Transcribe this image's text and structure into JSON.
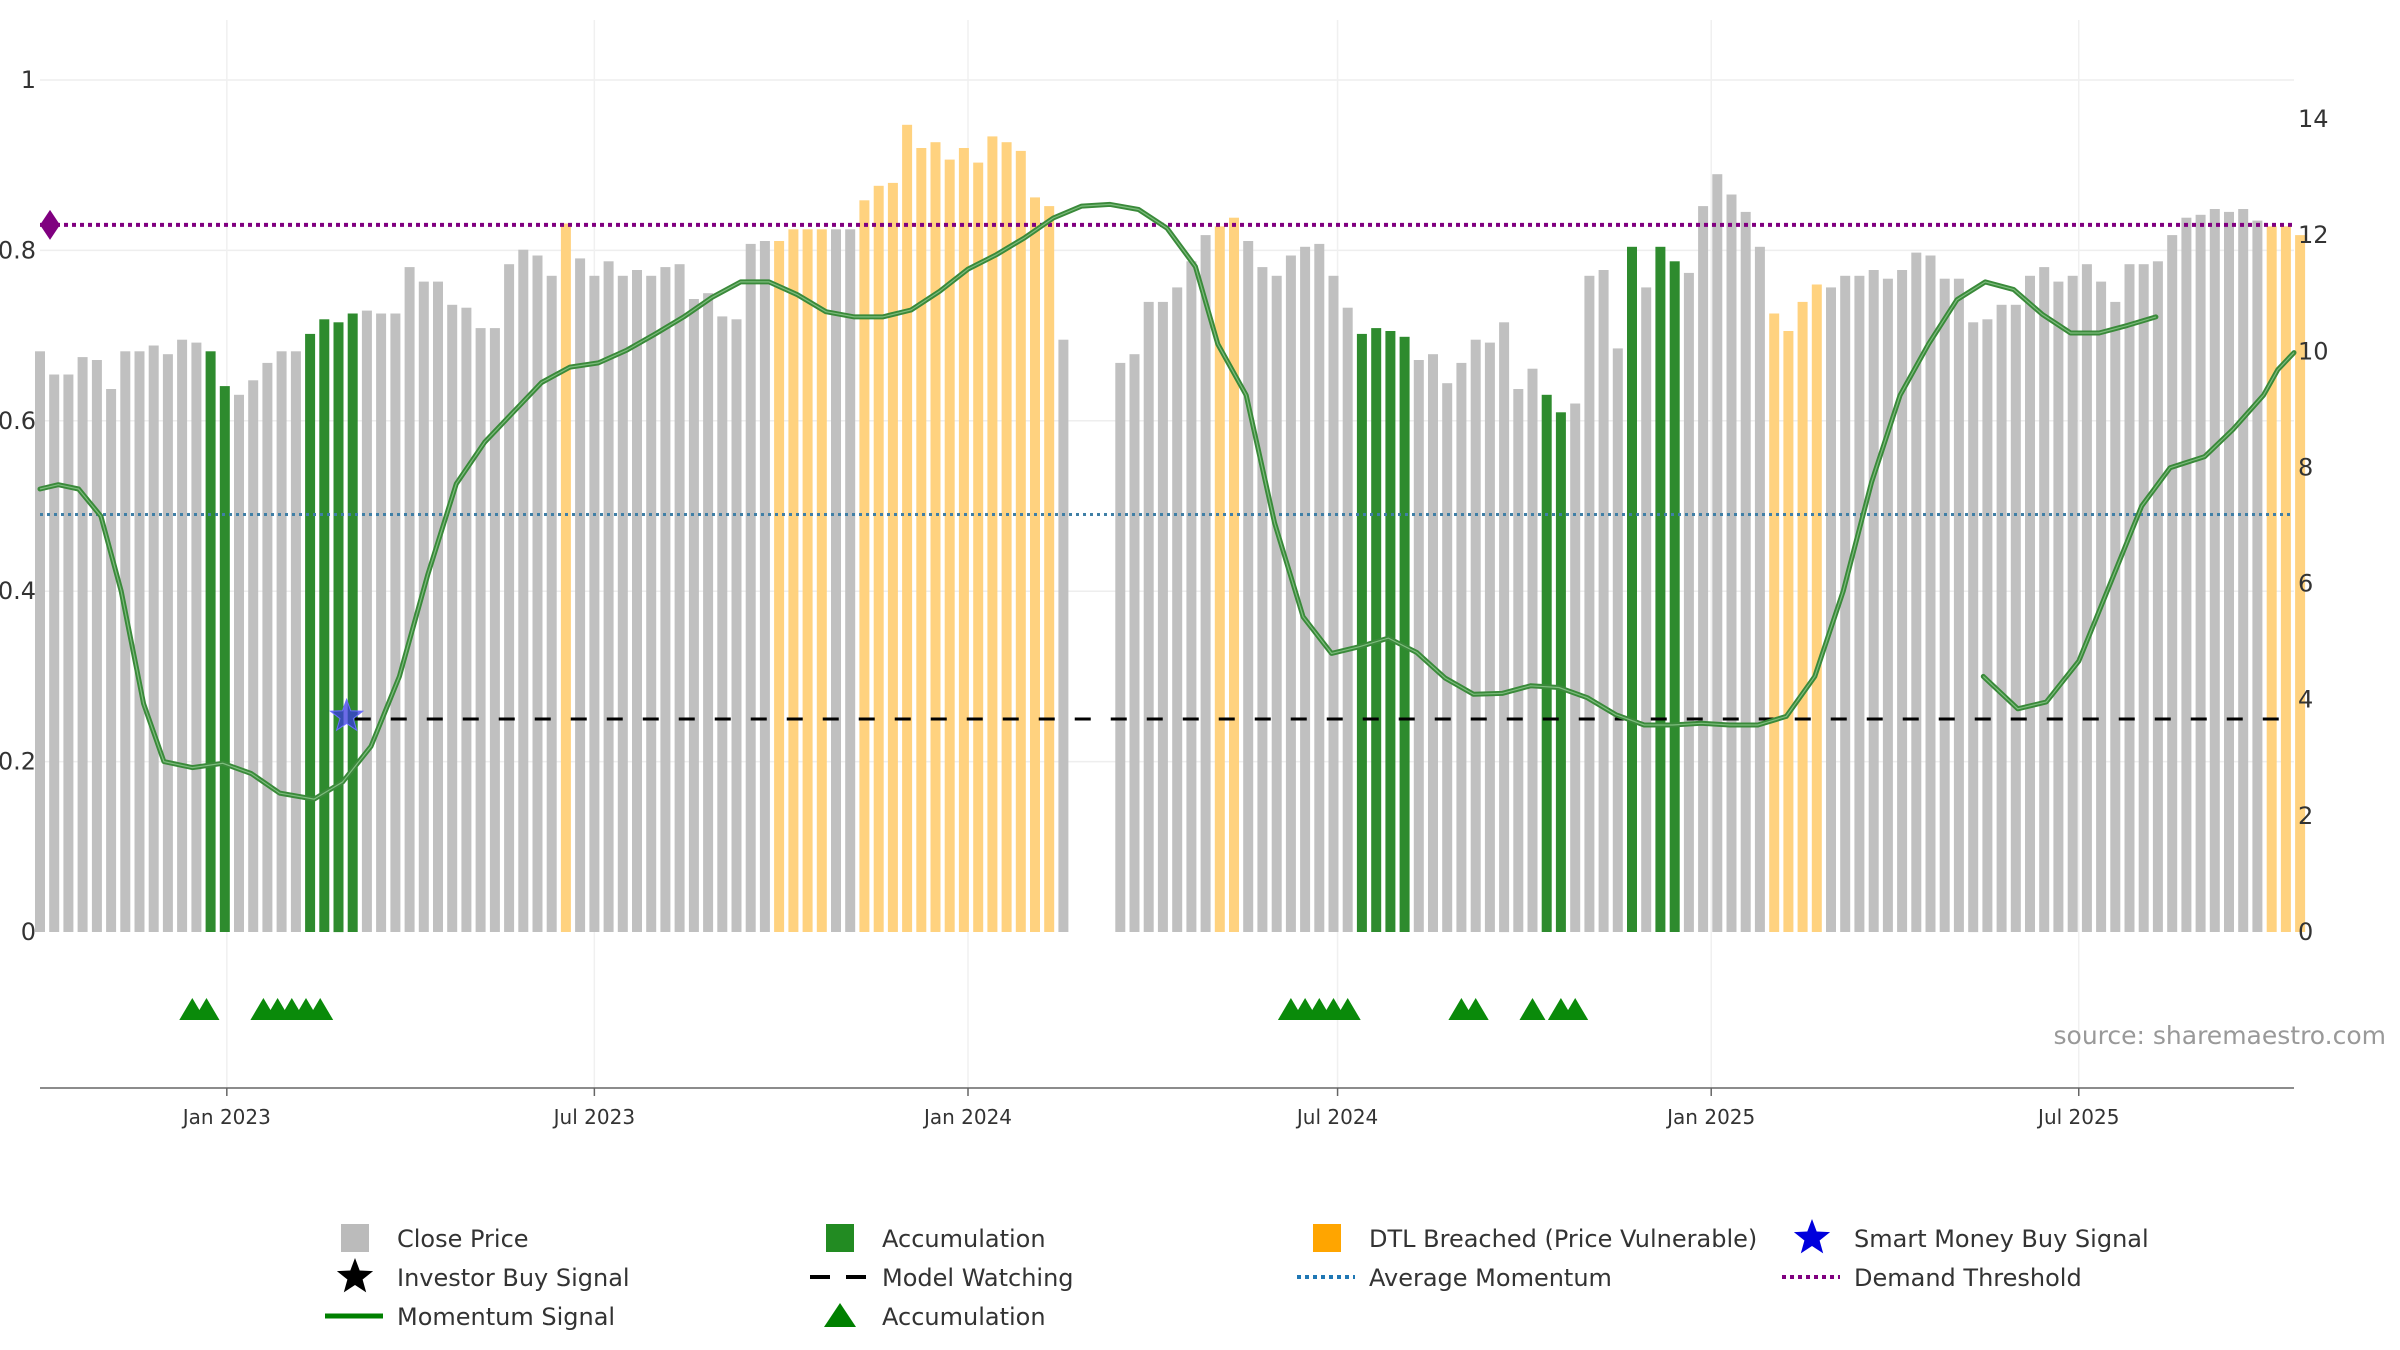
{
  "chart_data": {
    "type": "bar",
    "source_text": "source: sharemaestro.com",
    "left_axis": {
      "range": [
        0,
        1
      ],
      "ticks": [
        "0",
        "0.2",
        "0.4",
        "0.6",
        "0.8",
        "1"
      ]
    },
    "right_axis": {
      "range": [
        0,
        14
      ],
      "ticks": [
        "0",
        "2",
        "4",
        "6",
        "8",
        "10",
        "12",
        "14"
      ]
    },
    "x_axis": {
      "start": "2022-10-01",
      "end": "2025-10-15",
      "ticks": [
        {
          "label": "Jan 2023",
          "date": "2023-01-01"
        },
        {
          "label": "Jul 2023",
          "date": "2023-07-01"
        },
        {
          "label": "Jan 2024",
          "date": "2024-01-01"
        },
        {
          "label": "Jul 2024",
          "date": "2024-07-01"
        },
        {
          "label": "Jan 2025",
          "date": "2025-01-01"
        },
        {
          "label": "Jul 2025",
          "date": "2025-07-01"
        }
      ]
    },
    "bar_start_date": "2022-10-01",
    "bar_interval_days": 7,
    "close_price": [
      10.0,
      9.6,
      9.6,
      9.9,
      9.85,
      9.35,
      10.0,
      10.0,
      10.1,
      9.95,
      10.2,
      10.15,
      10.0,
      9.4,
      9.25,
      9.5,
      9.8,
      10.0,
      10.0,
      10.3,
      10.55,
      10.5,
      10.65,
      10.7,
      10.65,
      10.65,
      11.45,
      11.2,
      11.2,
      10.8,
      10.75,
      10.4,
      10.4,
      11.5,
      11.75,
      11.65,
      11.3,
      12.2,
      11.6,
      11.3,
      11.55,
      11.3,
      11.4,
      11.3,
      11.45,
      11.5,
      10.9,
      11.0,
      10.6,
      10.55,
      11.85,
      11.9,
      11.9,
      12.1,
      12.1,
      12.1,
      12.1,
      12.1,
      12.6,
      12.85,
      12.9,
      13.9,
      13.5,
      13.6,
      13.3,
      13.5,
      13.25,
      13.7,
      13.6,
      13.45,
      12.65,
      12.5,
      10.2,
      9.8,
      9.95,
      10.85,
      10.85,
      11.1,
      11.55,
      12.0,
      12.15,
      12.3,
      11.9,
      11.45,
      11.3,
      11.65,
      11.8,
      11.85,
      11.3,
      10.75,
      10.3,
      10.4,
      10.35,
      10.25,
      9.85,
      9.95,
      9.45,
      9.8,
      10.2,
      10.15,
      10.5,
      9.35,
      9.7,
      9.25,
      8.95,
      9.1,
      11.3,
      11.4,
      10.05,
      11.8,
      11.1,
      11.8,
      11.55,
      11.35,
      12.5,
      13.05,
      12.7,
      12.4,
      11.8,
      10.65,
      10.35,
      10.85,
      11.15,
      11.1,
      11.3,
      11.3,
      11.4,
      11.25,
      11.4,
      11.7,
      11.65,
      11.25,
      11.25,
      10.5,
      10.55,
      10.8,
      10.8,
      11.3,
      11.45,
      11.2,
      11.3,
      11.5,
      11.2,
      10.85,
      11.5,
      11.5,
      11.55,
      12.0,
      12.3,
      12.35,
      12.45,
      12.4,
      12.45,
      12.25,
      12.15,
      12.15,
      12.0
    ],
    "bar_state": [
      "p",
      "p",
      "p",
      "p",
      "p",
      "p",
      "p",
      "p",
      "p",
      "p",
      "p",
      "p",
      "a",
      "a",
      "p",
      "p",
      "p",
      "p",
      "p",
      "a",
      "a",
      "a",
      "a",
      "p",
      "p",
      "p",
      "p",
      "p",
      "p",
      "p",
      "p",
      "p",
      "p",
      "p",
      "p",
      "p",
      "p",
      "d",
      "p",
      "p",
      "p",
      "p",
      "p",
      "p",
      "p",
      "p",
      "p",
      "p",
      "p",
      "p",
      "p",
      "p",
      "d",
      "d",
      "d",
      "d",
      "p",
      "p",
      "d",
      "d",
      "d",
      "d",
      "d",
      "d",
      "d",
      "d",
      "d",
      "d",
      "d",
      "d",
      "d",
      "d",
      "p",
      "p",
      "p",
      "p",
      "p",
      "p",
      "p",
      "p",
      "d",
      "d",
      "p",
      "p",
      "p",
      "p",
      "p",
      "p",
      "p",
      "p",
      "a",
      "a",
      "a",
      "a",
      "p",
      "p",
      "p",
      "p",
      "p",
      "p",
      "p",
      "p",
      "p",
      "a",
      "a",
      "p",
      "p",
      "p",
      "p",
      "a",
      "p",
      "a",
      "a",
      "p",
      "p",
      "p",
      "p",
      "p",
      "p",
      "d",
      "d",
      "d",
      "d",
      "p",
      "p",
      "p",
      "p",
      "p",
      "p",
      "p",
      "p",
      "p",
      "p",
      "p",
      "p",
      "p",
      "p",
      "p",
      "p",
      "p",
      "p",
      "p",
      "p",
      "p",
      "p",
      "p",
      "p",
      "p",
      "p",
      "p",
      "p",
      "p",
      "p",
      "p",
      "d",
      "d",
      "d",
      "d",
      "d",
      "d",
      "d",
      "d"
    ],
    "bar_gap_index": 73,
    "momentum_signal": [
      [
        "2022-10-01",
        0.52
      ],
      [
        "2022-10-10",
        0.525
      ],
      [
        "2022-10-20",
        0.52
      ],
      [
        "2022-10-31",
        0.488
      ],
      [
        "2022-11-10",
        0.4
      ],
      [
        "2022-11-21",
        0.268
      ],
      [
        "2022-12-01",
        0.2
      ],
      [
        "2022-12-15",
        0.193
      ],
      [
        "2022-12-30",
        0.198
      ],
      [
        "2023-01-13",
        0.186
      ],
      [
        "2023-01-27",
        0.163
      ],
      [
        "2023-02-13",
        0.156
      ],
      [
        "2023-02-27",
        0.176
      ],
      [
        "2023-03-13",
        0.218
      ],
      [
        "2023-03-27",
        0.3
      ],
      [
        "2023-04-10",
        0.42
      ],
      [
        "2023-04-24",
        0.526
      ],
      [
        "2023-05-08",
        0.575
      ],
      [
        "2023-05-22",
        0.61
      ],
      [
        "2023-06-05",
        0.645
      ],
      [
        "2023-06-19",
        0.663
      ],
      [
        "2023-07-03",
        0.668
      ],
      [
        "2023-07-17",
        0.683
      ],
      [
        "2023-07-31",
        0.702
      ],
      [
        "2023-08-14",
        0.722
      ],
      [
        "2023-08-28",
        0.745
      ],
      [
        "2023-09-11",
        0.763
      ],
      [
        "2023-09-25",
        0.763
      ],
      [
        "2023-10-09",
        0.748
      ],
      [
        "2023-10-23",
        0.728
      ],
      [
        "2023-11-06",
        0.722
      ],
      [
        "2023-11-20",
        0.722
      ],
      [
        "2023-12-04",
        0.73
      ],
      [
        "2023-12-18",
        0.752
      ],
      [
        "2024-01-01",
        0.778
      ],
      [
        "2024-01-15",
        0.795
      ],
      [
        "2024-01-29",
        0.815
      ],
      [
        "2024-02-12",
        0.838
      ],
      [
        "2024-02-26",
        0.852
      ],
      [
        "2024-03-11",
        0.854
      ],
      [
        "2024-03-25",
        0.848
      ],
      [
        "2024-04-08",
        0.826
      ],
      [
        "2024-04-22",
        0.781
      ],
      [
        "2024-05-03",
        0.69
      ],
      [
        "2024-05-17",
        0.63
      ],
      [
        "2024-05-31",
        0.48
      ],
      [
        "2024-06-14",
        0.37
      ],
      [
        "2024-06-28",
        0.327
      ],
      [
        "2024-07-12",
        0.335
      ],
      [
        "2024-07-26",
        0.345
      ],
      [
        "2024-08-09",
        0.328
      ],
      [
        "2024-08-23",
        0.298
      ],
      [
        "2024-09-06",
        0.279
      ],
      [
        "2024-09-20",
        0.28
      ],
      [
        "2024-10-04",
        0.289
      ],
      [
        "2024-10-18",
        0.287
      ],
      [
        "2024-11-01",
        0.275
      ],
      [
        "2024-11-15",
        0.255
      ],
      [
        "2024-11-29",
        0.243
      ],
      [
        "2024-12-13",
        0.243
      ],
      [
        "2024-12-27",
        0.245
      ],
      [
        "2025-01-10",
        0.243
      ],
      [
        "2025-01-24",
        0.243
      ],
      [
        "2025-02-07",
        0.253
      ],
      [
        "2025-02-21",
        0.3
      ],
      [
        "2025-03-07",
        0.4
      ],
      [
        "2025-03-21",
        0.528
      ],
      [
        "2025-04-04",
        0.63
      ],
      [
        "2025-04-18",
        0.69
      ],
      [
        "2025-05-02",
        0.742
      ],
      [
        "2025-05-16",
        0.763
      ],
      [
        "2025-05-30",
        0.754
      ],
      [
        "2025-06-13",
        0.725
      ],
      [
        "2025-06-27",
        0.703
      ],
      [
        "2025-07-11",
        0.703
      ],
      [
        "2025-07-25",
        0.712
      ],
      [
        "2025-08-08",
        0.722
      ],
      [
        "2025-08-22",
        0.716
      ],
      [
        "2025-09-05",
        0.672
      ],
      [
        "2025-09-19",
        0.555
      ],
      [
        "2025-10-03",
        0.39
      ]
    ],
    "momentum_signal_tail": [
      [
        "2025-05-15",
        0.3
      ],
      [
        "2025-06-01",
        0.262
      ],
      [
        "2025-06-15",
        0.27
      ],
      [
        "2025-07-01",
        0.318
      ],
      [
        "2025-07-15",
        0.4
      ],
      [
        "2025-08-01",
        0.5
      ],
      [
        "2025-08-15",
        0.545
      ],
      [
        "2025-09-01",
        0.558
      ],
      [
        "2025-09-15",
        0.59
      ],
      [
        "2025-09-30",
        0.63
      ],
      [
        "2025-10-07",
        0.66
      ],
      [
        "2025-10-15",
        0.68
      ]
    ],
    "average_momentum": 0.49,
    "demand_threshold": 0.83,
    "model_watching": {
      "start": "2023-03-05",
      "end": "2025-10-15",
      "value": 0.25
    },
    "smart_money_buy_signal": {
      "date": "2023-03-01",
      "value": 0.253
    },
    "accumulation_markers": [
      "2022-12-15",
      "2022-12-22",
      "2023-01-19",
      "2023-01-26",
      "2023-02-02",
      "2023-02-09",
      "2023-02-16",
      "2024-06-08",
      "2024-06-15",
      "2024-06-22",
      "2024-06-29",
      "2024-07-06",
      "2024-08-31",
      "2024-09-07",
      "2024-10-05",
      "2024-10-19",
      "2024-10-26"
    ],
    "legend": [
      {
        "label": "Close Price",
        "symbol": "square",
        "color": "#bbbbbb"
      },
      {
        "label": "Accumulation",
        "symbol": "square",
        "color": "#228b22"
      },
      {
        "label": "DTL Breached (Price Vulnerable)",
        "symbol": "square",
        "color": "#ffa500"
      },
      {
        "label": "Smart Money Buy Signal",
        "symbol": "star",
        "color": "#0000dd"
      },
      {
        "label": "Investor Buy Signal",
        "symbol": "star",
        "color": "#000000"
      },
      {
        "label": "Model Watching",
        "symbol": "dash",
        "color": "#000000"
      },
      {
        "label": "Average Momentum",
        "symbol": "dot",
        "color": "#1f77b4"
      },
      {
        "label": "Demand Threshold",
        "symbol": "dot",
        "color": "#800080"
      },
      {
        "label": "Momentum Signal",
        "symbol": "line",
        "color": "#008000"
      },
      {
        "label": "Accumulation",
        "symbol": "triangle",
        "color": "#008000"
      }
    ],
    "colors": {
      "close_price": "#c0c0c0",
      "accumulation": "#2e8b2e",
      "dtl_breached": "#ffd27f",
      "momentum": "#3a8a3a",
      "average_momentum": "#3f7fa6",
      "demand_threshold": "#800080",
      "model_watching": "#000000",
      "smart_money": "#3a3adf",
      "markers": "#0a8a0a"
    }
  }
}
